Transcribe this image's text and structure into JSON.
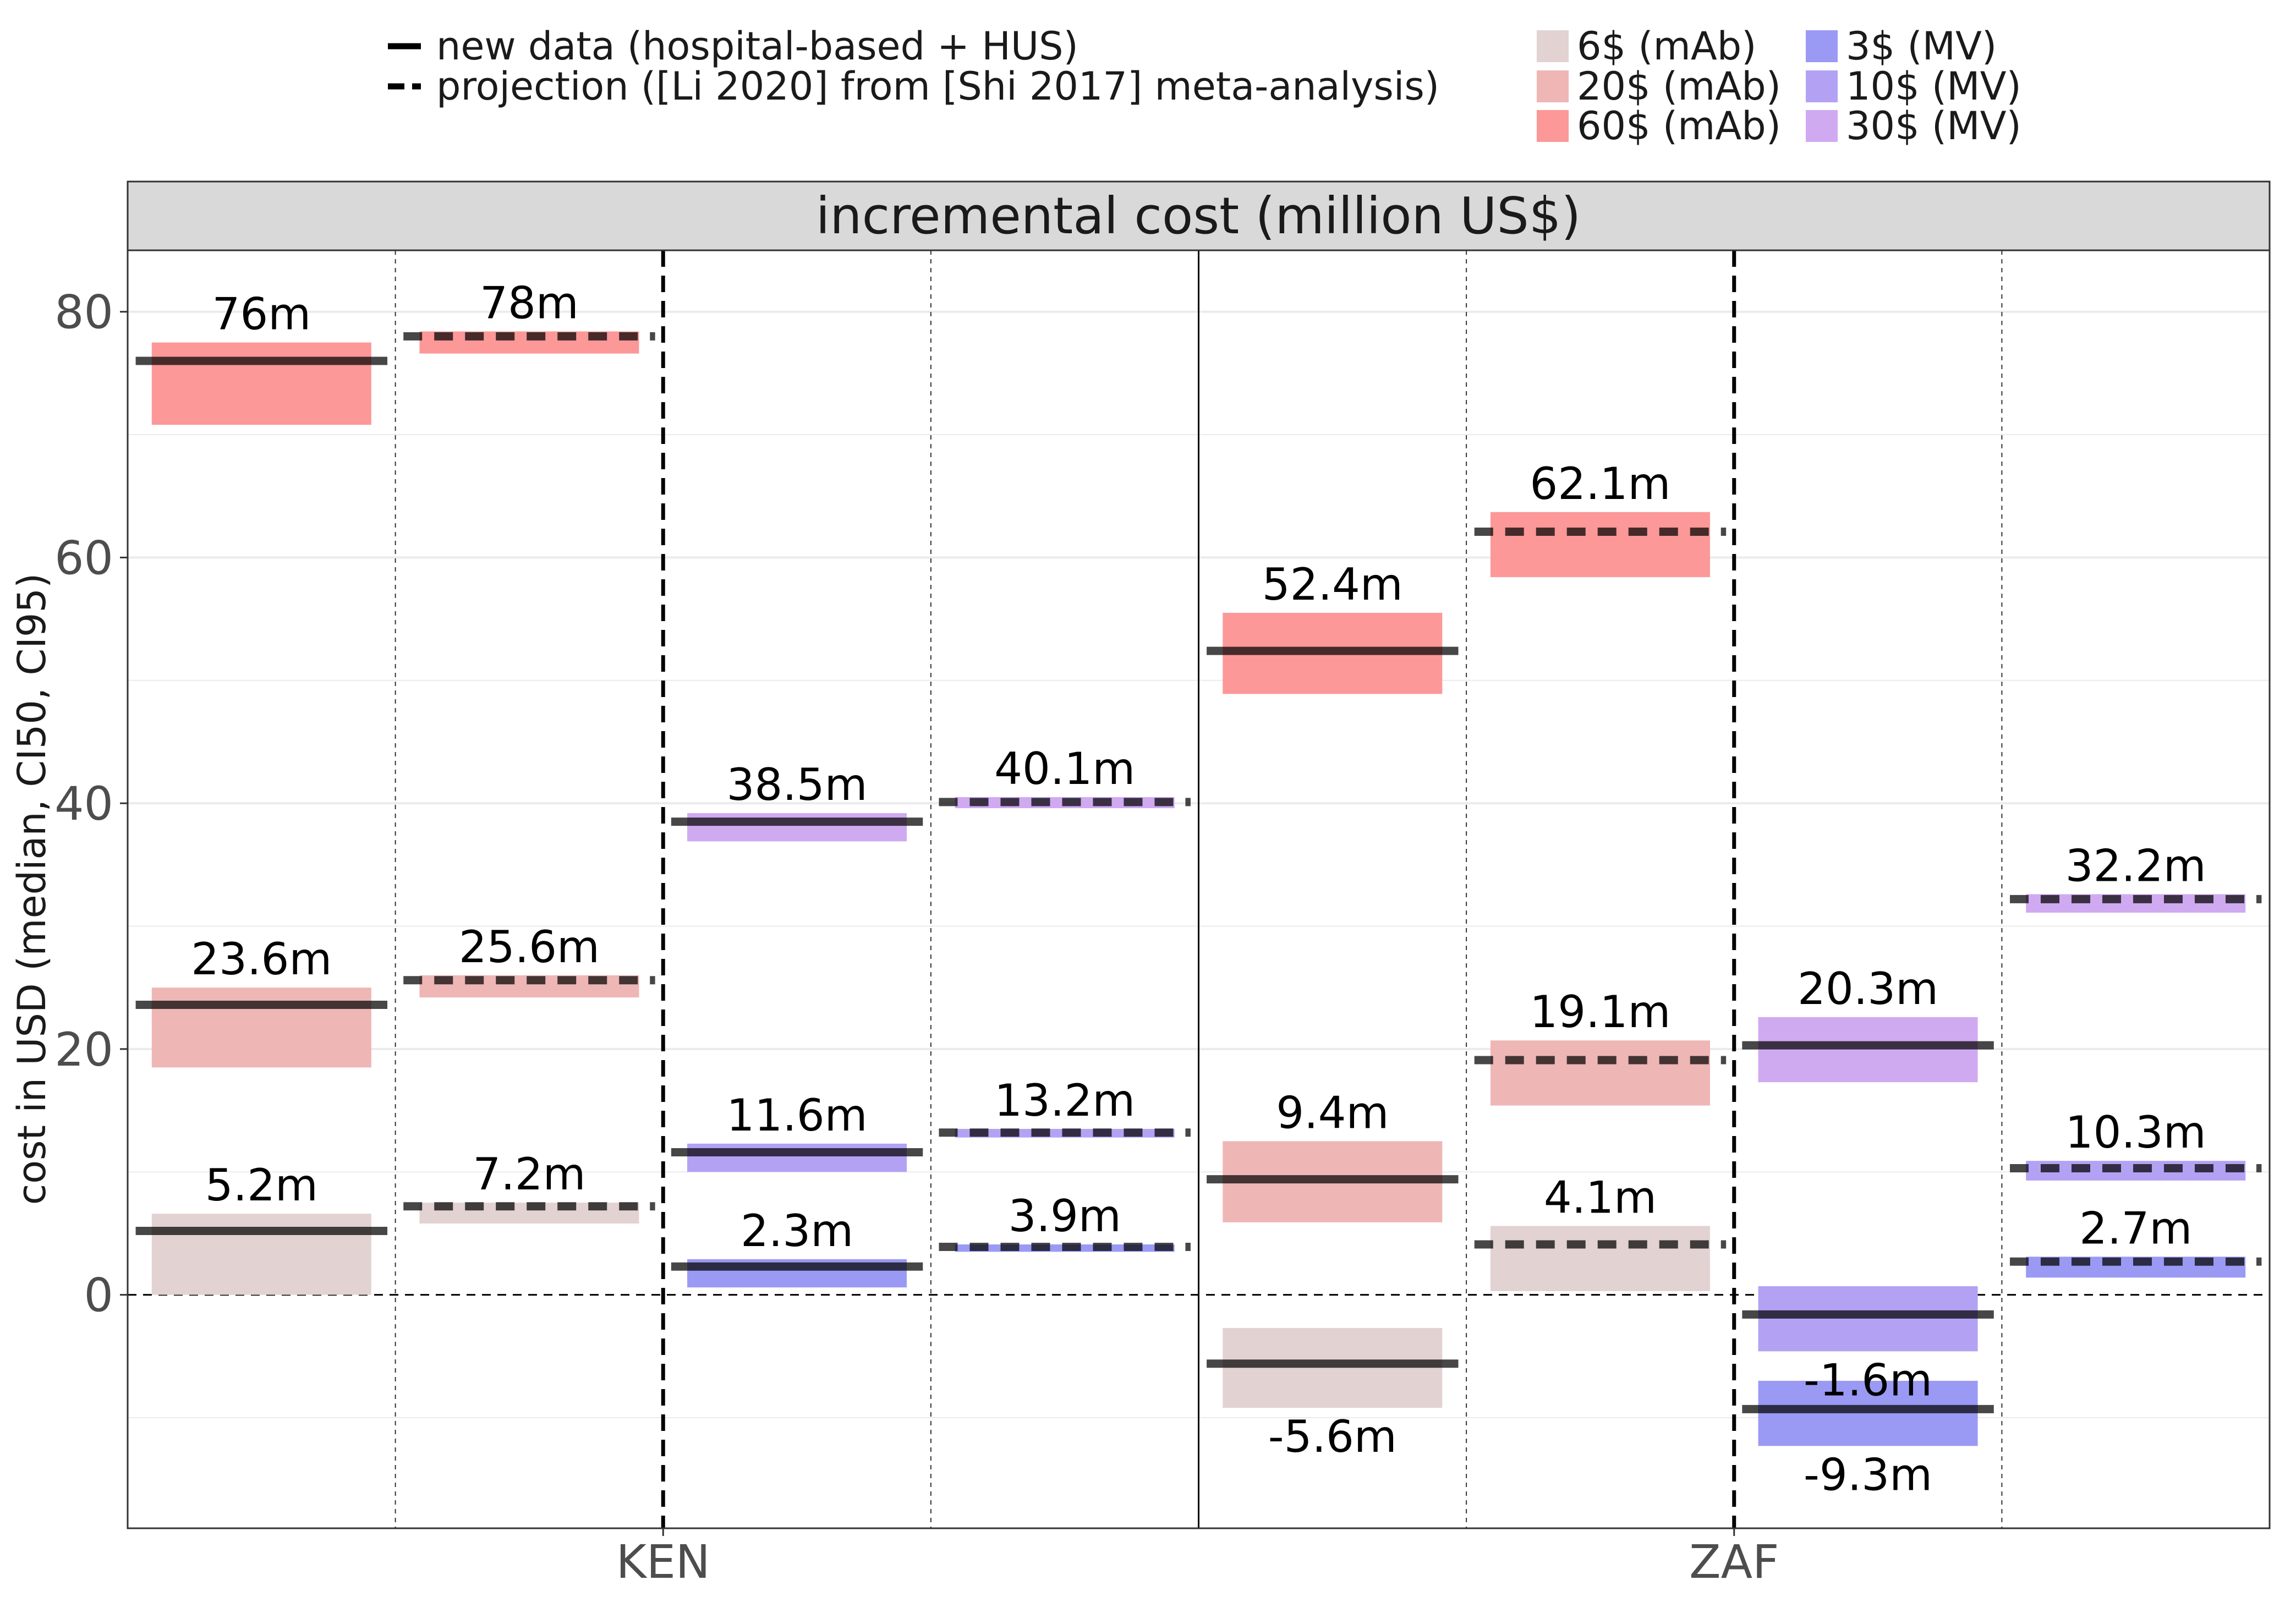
{
  "chart_data": {
    "type": "bar",
    "title": "incremental cost (million US$)",
    "ylabel": "cost in USD (median, CI50, CI95)",
    "xlabel": "",
    "ylim": [
      -19,
      85
    ],
    "yticks": [
      0,
      20,
      40,
      60,
      80
    ],
    "grid": true,
    "legend_position": "top",
    "categories": [
      "KEN",
      "ZAF"
    ],
    "line_legend": [
      {
        "style": "solid",
        "label": "new data (hospital-based + HUS)"
      },
      {
        "style": "dashed",
        "label": "projection ([Li 2020] from [Shi 2017] meta-analysis)"
      }
    ],
    "fill_legend": [
      {
        "label": "6$ (mAb)",
        "color": "#e3d2d2"
      },
      {
        "label": "20$ (mAb)",
        "color": "#efb6b6"
      },
      {
        "label": "60$ (mAb)",
        "color": "#fc9898"
      },
      {
        "label": "3$ (MV)",
        "color": "#9a9af4"
      },
      {
        "label": "10$ (MV)",
        "color": "#b3a2f4"
      },
      {
        "label": "30$ (MV)",
        "color": "#cfaaf0"
      }
    ],
    "series": [
      {
        "country": "KEN",
        "column": 1,
        "data": "new",
        "price": "6$ (mAb)",
        "median": 5.2,
        "ci50": [
          0,
          6.6
        ],
        "label": "5.2m"
      },
      {
        "country": "KEN",
        "column": 1,
        "data": "new",
        "price": "20$ (mAb)",
        "median": 23.6,
        "ci50": [
          18.5,
          25.0
        ],
        "label": "23.6m"
      },
      {
        "country": "KEN",
        "column": 1,
        "data": "new",
        "price": "60$ (mAb)",
        "median": 76,
        "ci50": [
          70.8,
          77.5
        ],
        "label": "76m"
      },
      {
        "country": "KEN",
        "column": 2,
        "data": "projection",
        "price": "6$ (mAb)",
        "median": 7.2,
        "ci50": [
          5.8,
          7.5
        ],
        "label": "7.2m"
      },
      {
        "country": "KEN",
        "column": 2,
        "data": "projection",
        "price": "20$ (mAb)",
        "median": 25.6,
        "ci50": [
          24.2,
          26.0
        ],
        "label": "25.6m"
      },
      {
        "country": "KEN",
        "column": 2,
        "data": "projection",
        "price": "60$ (mAb)",
        "median": 78,
        "ci50": [
          76.6,
          78.4
        ],
        "label": "78m"
      },
      {
        "country": "KEN",
        "column": 3,
        "data": "new",
        "price": "3$ (MV)",
        "median": 2.3,
        "ci50": [
          0.6,
          2.9
        ],
        "label": "2.3m"
      },
      {
        "country": "KEN",
        "column": 3,
        "data": "new",
        "price": "10$ (MV)",
        "median": 11.6,
        "ci50": [
          10.0,
          12.3
        ],
        "label": "11.6m"
      },
      {
        "country": "KEN",
        "column": 3,
        "data": "new",
        "price": "30$ (MV)",
        "median": 38.5,
        "ci50": [
          36.9,
          39.2
        ],
        "label": "38.5m"
      },
      {
        "country": "KEN",
        "column": 4,
        "data": "projection",
        "price": "3$ (MV)",
        "median": 3.9,
        "ci50": [
          3.5,
          4.1
        ],
        "label": "3.9m"
      },
      {
        "country": "KEN",
        "column": 4,
        "data": "projection",
        "price": "10$ (MV)",
        "median": 13.2,
        "ci50": [
          12.8,
          13.5
        ],
        "label": "13.2m"
      },
      {
        "country": "KEN",
        "column": 4,
        "data": "projection",
        "price": "30$ (MV)",
        "median": 40.1,
        "ci50": [
          39.6,
          40.5
        ],
        "label": "40.1m"
      },
      {
        "country": "ZAF",
        "column": 1,
        "data": "new",
        "price": "6$ (mAb)",
        "median": -5.6,
        "ci50": [
          -9.2,
          -2.7
        ],
        "label": "-5.6m"
      },
      {
        "country": "ZAF",
        "column": 1,
        "data": "new",
        "price": "20$ (mAb)",
        "median": 9.4,
        "ci50": [
          5.9,
          12.5
        ],
        "label": "9.4m"
      },
      {
        "country": "ZAF",
        "column": 1,
        "data": "new",
        "price": "60$ (mAb)",
        "median": 52.4,
        "ci50": [
          48.9,
          55.5
        ],
        "label": "52.4m"
      },
      {
        "country": "ZAF",
        "column": 2,
        "data": "projection",
        "price": "6$ (mAb)",
        "median": 4.1,
        "ci50": [
          0.3,
          5.6
        ],
        "label": "4.1m"
      },
      {
        "country": "ZAF",
        "column": 2,
        "data": "projection",
        "price": "20$ (mAb)",
        "median": 19.1,
        "ci50": [
          15.4,
          20.7
        ],
        "label": "19.1m"
      },
      {
        "country": "ZAF",
        "column": 2,
        "data": "projection",
        "price": "60$ (mAb)",
        "median": 62.1,
        "ci50": [
          58.4,
          63.7
        ],
        "label": "62.1m"
      },
      {
        "country": "ZAF",
        "column": 3,
        "data": "new",
        "price": "3$ (MV)",
        "median": -9.3,
        "ci50": [
          -12.3,
          -7.0
        ],
        "label": "-9.3m"
      },
      {
        "country": "ZAF",
        "column": 3,
        "data": "new",
        "price": "10$ (MV)",
        "median": -1.6,
        "ci50": [
          -4.6,
          0.7
        ],
        "label": "-1.6m"
      },
      {
        "country": "ZAF",
        "column": 3,
        "data": "new",
        "price": "30$ (MV)",
        "median": 20.3,
        "ci50": [
          17.3,
          22.6
        ],
        "label": "20.3m"
      },
      {
        "country": "ZAF",
        "column": 4,
        "data": "projection",
        "price": "3$ (MV)",
        "median": 2.7,
        "ci50": [
          1.4,
          3.1
        ],
        "label": "2.7m"
      },
      {
        "country": "ZAF",
        "column": 4,
        "data": "projection",
        "price": "10$ (MV)",
        "median": 10.3,
        "ci50": [
          9.3,
          10.9
        ],
        "label": "10.3m"
      },
      {
        "country": "ZAF",
        "column": 4,
        "data": "projection",
        "price": "30$ (MV)",
        "median": 32.2,
        "ci50": [
          31.1,
          32.6
        ],
        "label": "32.2m"
      }
    ]
  }
}
